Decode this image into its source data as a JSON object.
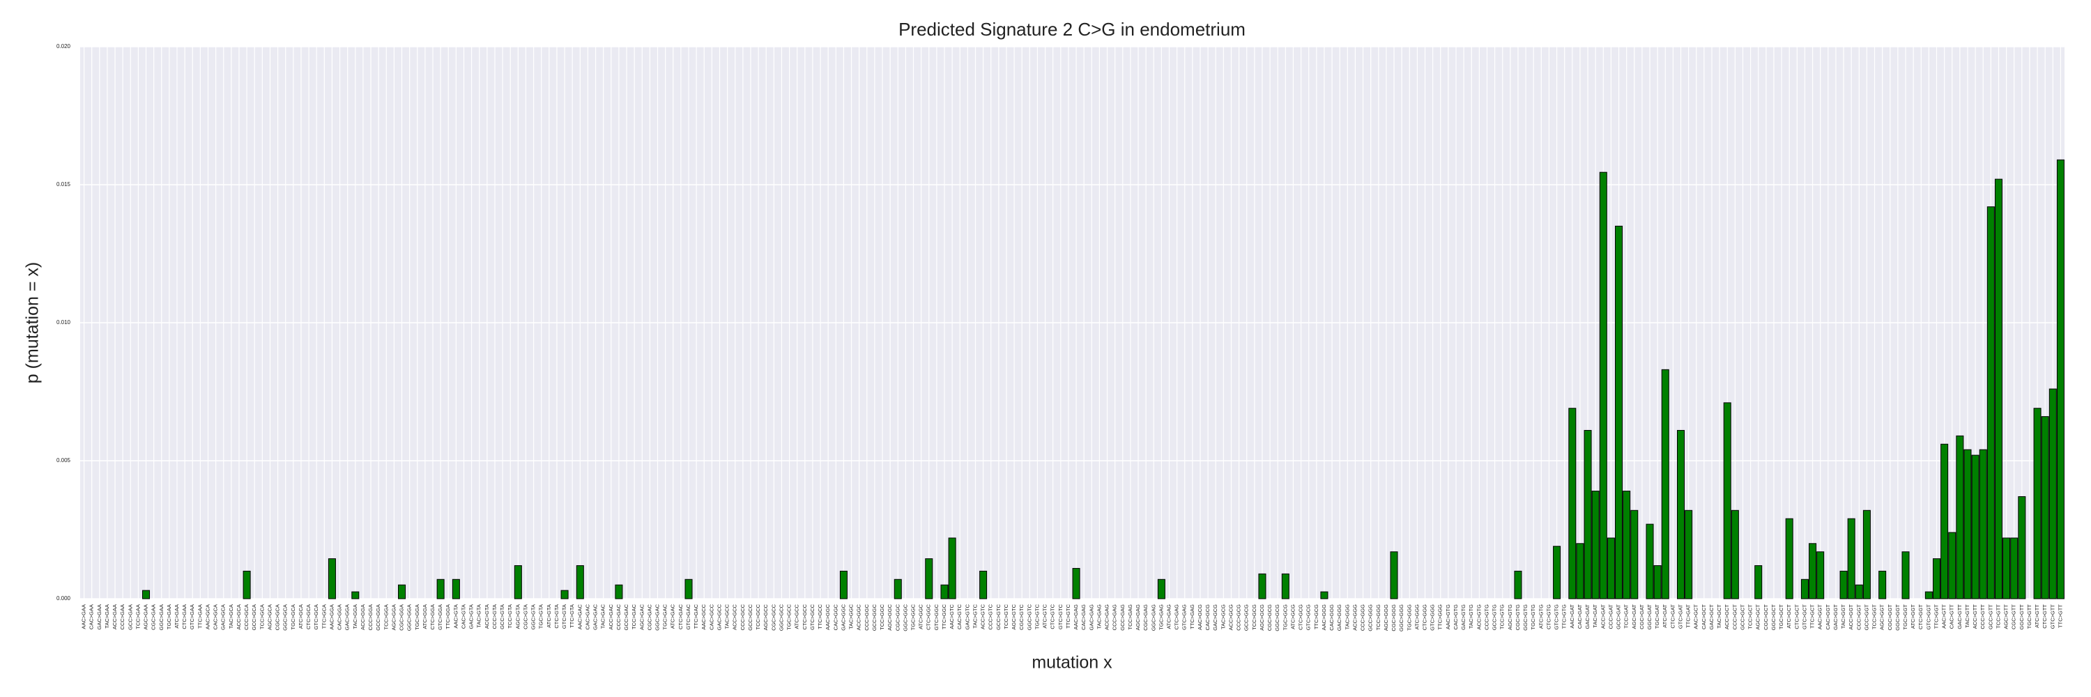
{
  "chart_data": {
    "type": "bar",
    "title": "Predicted Signature 2 C>G in endometrium",
    "xlabel": "mutation x",
    "ylabel": "p (mutation = x)",
    "color": "#008000",
    "edgecolor": "#000000",
    "grid": true,
    "ylim": [
      0,
      0.02
    ],
    "yticks": [
      {
        "value": 0,
        "label": "0.000"
      },
      {
        "value": 0.005,
        "label": "0.005"
      },
      {
        "value": 0.01,
        "label": "0.010"
      },
      {
        "value": 0.015,
        "label": "0.015"
      },
      {
        "value": 0.02,
        "label": "0.020"
      }
    ],
    "categories": [
      "AAC>GAA",
      "CAC>GAA",
      "GAC>GAA",
      "TAC>GAA",
      "ACC>GAA",
      "CCC>GAA",
      "GCC>GAA",
      "TCC>GAA",
      "AGC>GAA",
      "CGC>GAA",
      "GGC>GAA",
      "TGC>GAA",
      "ATC>GAA",
      "CTC>GAA",
      "GTC>GAA",
      "TTC>GAA",
      "AAC>GCA",
      "CAC>GCA",
      "GAC>GCA",
      "TAC>GCA",
      "ACC>GCA",
      "CCC>GCA",
      "GCC>GCA",
      "TCC>GCA",
      "AGC>GCA",
      "CGC>GCA",
      "GGC>GCA",
      "TGC>GCA",
      "ATC>GCA",
      "CTC>GCA",
      "GTC>GCA",
      "TTC>GCA",
      "AAC>GGA",
      "CAC>GGA",
      "GAC>GGA",
      "TAC>GGA",
      "ACC>GGA",
      "CCC>GGA",
      "GCC>GGA",
      "TCC>GGA",
      "AGC>GGA",
      "CGC>GGA",
      "GGC>GGA",
      "TGC>GGA",
      "ATC>GGA",
      "CTC>GGA",
      "GTC>GGA",
      "TTC>GGA",
      "AAC>GTA",
      "CAC>GTA",
      "GAC>GTA",
      "TAC>GTA",
      "ACC>GTA",
      "CCC>GTA",
      "GCC>GTA",
      "TCC>GTA",
      "AGC>GTA",
      "CGC>GTA",
      "GGC>GTA",
      "TGC>GTA",
      "ATC>GTA",
      "CTC>GTA",
      "GTC>GTA",
      "TTC>GTA",
      "AAC>GAC",
      "CAC>GAC",
      "GAC>GAC",
      "TAC>GAC",
      "ACC>GAC",
      "CCC>GAC",
      "GCC>GAC",
      "TCC>GAC",
      "AGC>GAC",
      "CGC>GAC",
      "GGC>GAC",
      "TGC>GAC",
      "ATC>GAC",
      "CTC>GAC",
      "GTC>GAC",
      "TTC>GAC",
      "AAC>GCC",
      "CAC>GCC",
      "GAC>GCC",
      "TAC>GCC",
      "ACC>GCC",
      "CCC>GCC",
      "GCC>GCC",
      "TCC>GCC",
      "AGC>GCC",
      "CGC>GCC",
      "GGC>GCC",
      "TGC>GCC",
      "ATC>GCC",
      "CTC>GCC",
      "GTC>GCC",
      "TTC>GCC",
      "AAC>GGC",
      "CAC>GGC",
      "GAC>GGC",
      "TAC>GGC",
      "ACC>GGC",
      "CCC>GGC",
      "GCC>GGC",
      "TCC>GGC",
      "AGC>GGC",
      "CGC>GGC",
      "GGC>GGC",
      "TGC>GGC",
      "ATC>GGC",
      "CTC>GGC",
      "GTC>GGC",
      "TTC>GGC",
      "AAC>GTC",
      "CAC>GTC",
      "GAC>GTC",
      "TAC>GTC",
      "ACC>GTC",
      "CCC>GTC",
      "GCC>GTC",
      "TCC>GTC",
      "AGC>GTC",
      "CGC>GTC",
      "GGC>GTC",
      "TGC>GTC",
      "ATC>GTC",
      "CTC>GTC",
      "GTC>GTC",
      "TTC>GTC",
      "AAC>GAG",
      "CAC>GAG",
      "GAC>GAG",
      "TAC>GAG",
      "ACC>GAG",
      "CCC>GAG",
      "GCC>GAG",
      "TCC>GAG",
      "AGC>GAG",
      "CGC>GAG",
      "GGC>GAG",
      "TGC>GAG",
      "ATC>GAG",
      "CTC>GAG",
      "GTC>GAG",
      "TTC>GAG",
      "AAC>GCG",
      "CAC>GCG",
      "GAC>GCG",
      "TAC>GCG",
      "ACC>GCG",
      "CCC>GCG",
      "GCC>GCG",
      "TCC>GCG",
      "AGC>GCG",
      "CGC>GCG",
      "GGC>GCG",
      "TGC>GCG",
      "ATC>GCG",
      "CTC>GCG",
      "GTC>GCG",
      "TTC>GCG",
      "AAC>GGG",
      "CAC>GGG",
      "GAC>GGG",
      "TAC>GGG",
      "ACC>GGG",
      "CCC>GGG",
      "GCC>GGG",
      "TCC>GGG",
      "AGC>GGG",
      "CGC>GGG",
      "GGC>GGG",
      "TGC>GGG",
      "ATC>GGG",
      "CTC>GGG",
      "GTC>GGG",
      "TTC>GGG",
      "AAC>GTG",
      "CAC>GTG",
      "GAC>GTG",
      "TAC>GTG",
      "ACC>GTG",
      "CCC>GTG",
      "GCC>GTG",
      "TCC>GTG",
      "AGC>GTG",
      "CGC>GTG",
      "GGC>GTG",
      "TGC>GTG",
      "ATC>GTG",
      "CTC>GTG",
      "GTC>GTG",
      "TTC>GTG",
      "AAC>GAT",
      "CAC>GAT",
      "GAC>GAT",
      "TAC>GAT",
      "ACC>GAT",
      "CCC>GAT",
      "GCC>GAT",
      "TCC>GAT",
      "AGC>GAT",
      "CGC>GAT",
      "GGC>GAT",
      "TGC>GAT",
      "ATC>GAT",
      "CTC>GAT",
      "GTC>GAT",
      "TTC>GAT",
      "AAC>GCT",
      "CAC>GCT",
      "GAC>GCT",
      "TAC>GCT",
      "ACC>GCT",
      "CCC>GCT",
      "GCC>GCT",
      "TCC>GCT",
      "AGC>GCT",
      "CGC>GCT",
      "GGC>GCT",
      "TGC>GCT",
      "ATC>GCT",
      "CTC>GCT",
      "GTC>GCT",
      "TTC>GCT",
      "AAC>GGT",
      "CAC>GGT",
      "GAC>GGT",
      "TAC>GGT",
      "ACC>GGT",
      "CCC>GGT",
      "GCC>GGT",
      "TCC>GGT",
      "AGC>GGT",
      "CGC>GGT",
      "GGC>GGT",
      "TGC>GGT",
      "ATC>GGT",
      "CTC>GGT",
      "GTC>GGT",
      "TTC>GGT",
      "AAC>GTT",
      "CAC>GTT",
      "GAC>GTT",
      "TAC>GTT",
      "ACC>GTT",
      "CCC>GTT",
      "GCC>GTT",
      "TCC>GTT",
      "AGC>GTT",
      "CGC>GTT",
      "GGC>GTT",
      "TGC>GTT",
      "ATC>GTT",
      "CTC>GTT",
      "GTC>GTT",
      "TTC>GTT"
    ],
    "values": [
      0,
      0,
      0,
      0,
      0,
      0,
      0,
      0,
      0.0003,
      0,
      0,
      0,
      0,
      0,
      0,
      0,
      0,
      0,
      0,
      0,
      0,
      0.001,
      0,
      0,
      0,
      0,
      0,
      0,
      0,
      0,
      0,
      0,
      0.00145,
      0,
      0,
      0.00025,
      0,
      0,
      0,
      0,
      0,
      0.0005,
      0,
      0,
      0,
      0,
      0.0007,
      0,
      0.0007,
      0,
      0,
      0,
      0,
      0,
      0,
      0,
      0.0012,
      0,
      0,
      0,
      0,
      0,
      0.0003,
      0,
      0.0012,
      0,
      0,
      0,
      0,
      0.0005,
      0,
      0,
      0,
      0,
      0,
      0,
      0,
      0,
      0.0007,
      0,
      0,
      0,
      0,
      0,
      0,
      0,
      0,
      0,
      0,
      0,
      0,
      0,
      0,
      0,
      0,
      0,
      0,
      0,
      0.001,
      0,
      0,
      0,
      0,
      0,
      0,
      0.0007,
      0,
      0,
      0,
      0.00145,
      0,
      0.0005,
      0.0022,
      0,
      0,
      0,
      0.001,
      0,
      0,
      0,
      0,
      0,
      0,
      0,
      0,
      0,
      0,
      0,
      0.0011,
      0,
      0,
      0,
      0,
      0,
      0,
      0,
      0,
      0,
      0,
      0.0007,
      0,
      0,
      0,
      0,
      0,
      0,
      0,
      0,
      0,
      0,
      0,
      0,
      0.0009,
      0,
      0,
      0.0009,
      0,
      0,
      0,
      0,
      0.00025,
      0,
      0,
      0,
      0,
      0,
      0,
      0,
      0,
      0.0017,
      0,
      0,
      0,
      0,
      0,
      0,
      0,
      0,
      0,
      0,
      0,
      0,
      0,
      0,
      0,
      0.001,
      0,
      0,
      0,
      0,
      0.0019,
      0,
      0.0069,
      0.002,
      0.0061,
      0.0039,
      0.01545,
      0.0022,
      0.0135,
      0.0039,
      0.0032,
      0,
      0.0027,
      0.0012,
      0.0083,
      0,
      0.0061,
      0.0032,
      0,
      0,
      0,
      0,
      0.0071,
      0.0032,
      0,
      0,
      0.0012,
      0,
      0,
      0,
      0.0029,
      0,
      0.0007,
      0.002,
      0.0017,
      0,
      0,
      0.001,
      0.0029,
      0.0005,
      0.0032,
      0,
      0.001,
      0,
      0,
      0.0017,
      0,
      0,
      0.00025,
      0.00145,
      0.0056,
      0.0024,
      0.0059,
      0.0054,
      0.0052,
      0.0054,
      0.0142,
      0.0152,
      0.0022,
      0.0022,
      0.0037,
      0,
      0.0069,
      0.0066,
      0.0076,
      0.0159
    ]
  }
}
